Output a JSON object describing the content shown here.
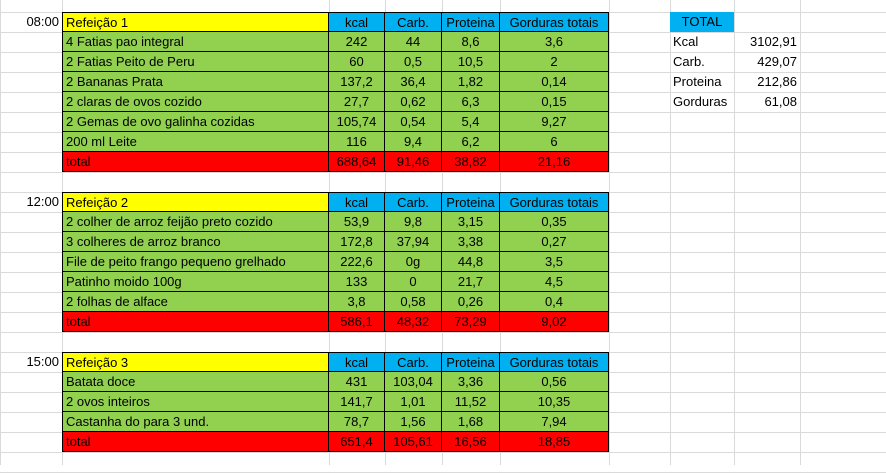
{
  "colors": {
    "title_bg": "#ffff00",
    "header_bg": "#00b0f0",
    "row_bg": "#92d050",
    "total_bg": "#ff0000",
    "grid": "#dadada"
  },
  "meals": [
    {
      "time": "08:00",
      "title": "Refeição 1",
      "headers": [
        "kcal",
        "Carb.",
        "Proteina",
        "Gorduras totais"
      ],
      "rows": [
        [
          "4 Fatias pao integral",
          "242",
          "44",
          "8,6",
          "3,6"
        ],
        [
          "2 Fatias Peito de Peru",
          "60",
          "0,5",
          "10,5",
          "2"
        ],
        [
          "2 Bananas Prata",
          "137,2",
          "36,4",
          "1,82",
          "0,14"
        ],
        [
          "2 claras de ovos cozido",
          "27,7",
          "0,62",
          "6,3",
          "0,15"
        ],
        [
          "2 Gemas de ovo galinha cozidas",
          "105,74",
          "0,54",
          "5,4",
          "9,27"
        ],
        [
          "200 ml Leite",
          "116",
          "9,4",
          "6,2",
          "6"
        ]
      ],
      "total": [
        "total",
        "688,64",
        "91,46",
        "38,82",
        "21,16"
      ]
    },
    {
      "time": "12:00",
      "title": "Refeição 2",
      "headers": [
        "kcal",
        "Carb.",
        "Proteina",
        "Gorduras totais"
      ],
      "rows": [
        [
          "2 colher de arroz feijão preto cozido",
          "53,9",
          "9,8",
          "3,15",
          "0,35"
        ],
        [
          "3 colheres de arroz branco",
          "172,8",
          "37,94",
          "3,38",
          "0,27"
        ],
        [
          "File de peito frango pequeno grelhado",
          "222,6",
          "0g",
          "44,8",
          "3,5"
        ],
        [
          "Patinho moido 100g",
          "133",
          "0",
          "21,7",
          "4,5"
        ],
        [
          "2 folhas de alface",
          "3,8",
          "0,58",
          "0,26",
          "0,4"
        ]
      ],
      "total": [
        "total",
        "586,1",
        "48,32",
        "73,29",
        "9,02"
      ]
    },
    {
      "time": "15:00",
      "title": "Refeição 3",
      "headers": [
        "kcal",
        "Carb.",
        "Proteina",
        "Gorduras totais"
      ],
      "rows": [
        [
          "Batata doce",
          "431",
          "103,04",
          "3,36",
          "0,56"
        ],
        [
          "2 ovos inteiros",
          "141,7",
          "1,01",
          "11,52",
          "10,35"
        ],
        [
          "Castanha do para 3 und.",
          "78,7",
          "1,56",
          "1,68",
          "7,94"
        ]
      ],
      "total": [
        "total",
        "651,4",
        "105,61",
        "16,56",
        "18,85"
      ]
    }
  ],
  "summary": {
    "title": "TOTAL",
    "rows": [
      [
        "Kcal",
        "3102,91"
      ],
      [
        "Carb.",
        "429,07"
      ],
      [
        "Proteina",
        "212,86"
      ],
      [
        "Gorduras",
        "61,08"
      ]
    ]
  }
}
